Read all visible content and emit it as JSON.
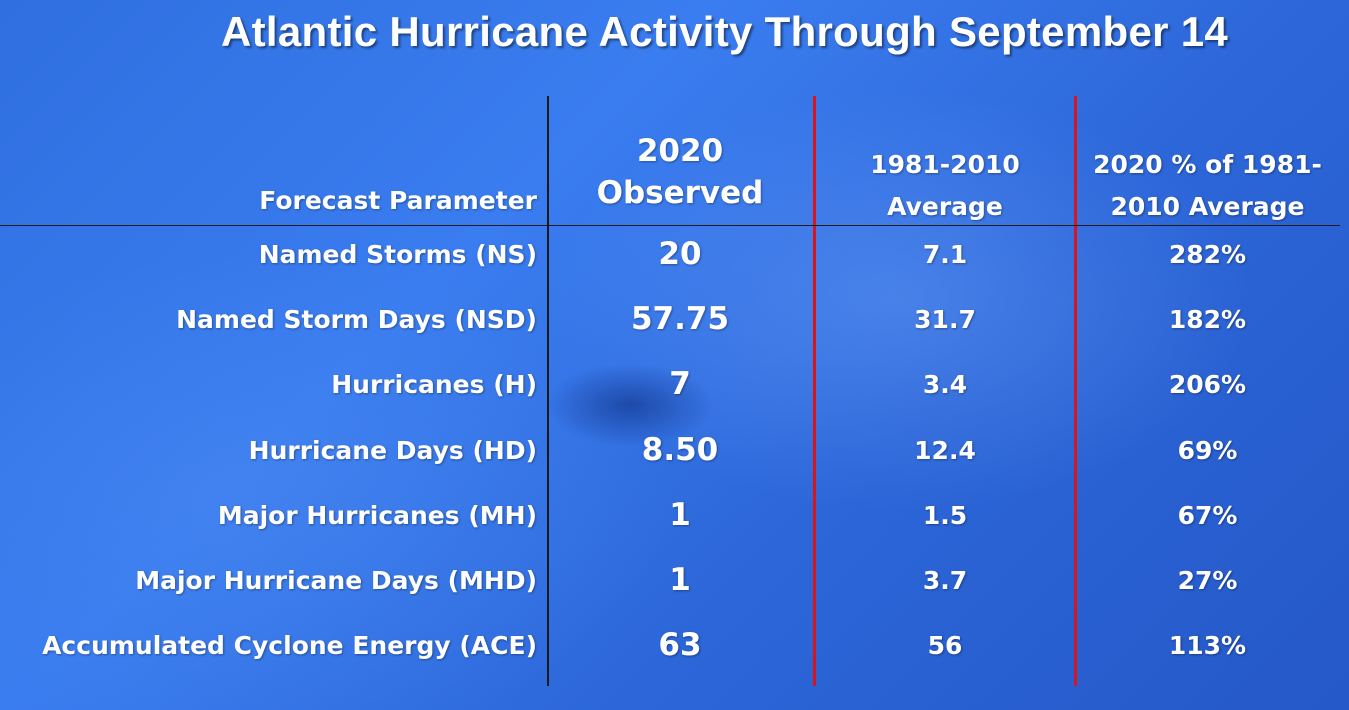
{
  "title": "Atlantic Hurricane Activity Through September 14",
  "chart_data": {
    "type": "table",
    "columns": [
      "Forecast Parameter",
      "2020 Observed",
      "1981-2010 Average",
      "2020 % of 1981-2010 Average"
    ],
    "header_lines": {
      "param": [
        "Forecast Parameter"
      ],
      "observed": [
        "2020",
        "Observed"
      ],
      "average": [
        "1981-2010",
        "Average"
      ],
      "percent": [
        "2020 % of 1981-",
        "2010 Average"
      ]
    },
    "rows": [
      {
        "parameter": "Named Storms (NS)",
        "observed": "20",
        "average": "7.1",
        "percent": "282%"
      },
      {
        "parameter": "Named Storm Days (NSD)",
        "observed": "57.75",
        "average": "31.7",
        "percent": "182%"
      },
      {
        "parameter": "Hurricanes (H)",
        "observed": "7",
        "average": "3.4",
        "percent": "206%"
      },
      {
        "parameter": "Hurricane Days (HD)",
        "observed": "8.50",
        "average": "12.4",
        "percent": "69%"
      },
      {
        "parameter": "Major Hurricanes (MH)",
        "observed": "1",
        "average": "1.5",
        "percent": "67%"
      },
      {
        "parameter": "Major Hurricane Days (MHD)",
        "observed": "1",
        "average": "3.7",
        "percent": "27%"
      },
      {
        "parameter": "Accumulated Cyclone Energy (ACE)",
        "observed": "63",
        "average": "56",
        "percent": "113%"
      }
    ]
  },
  "colors": {
    "background": "#2f6fe0",
    "text": "#ffffff",
    "divider_red": "#d8141c",
    "divider_black": "#1a1a1a"
  }
}
